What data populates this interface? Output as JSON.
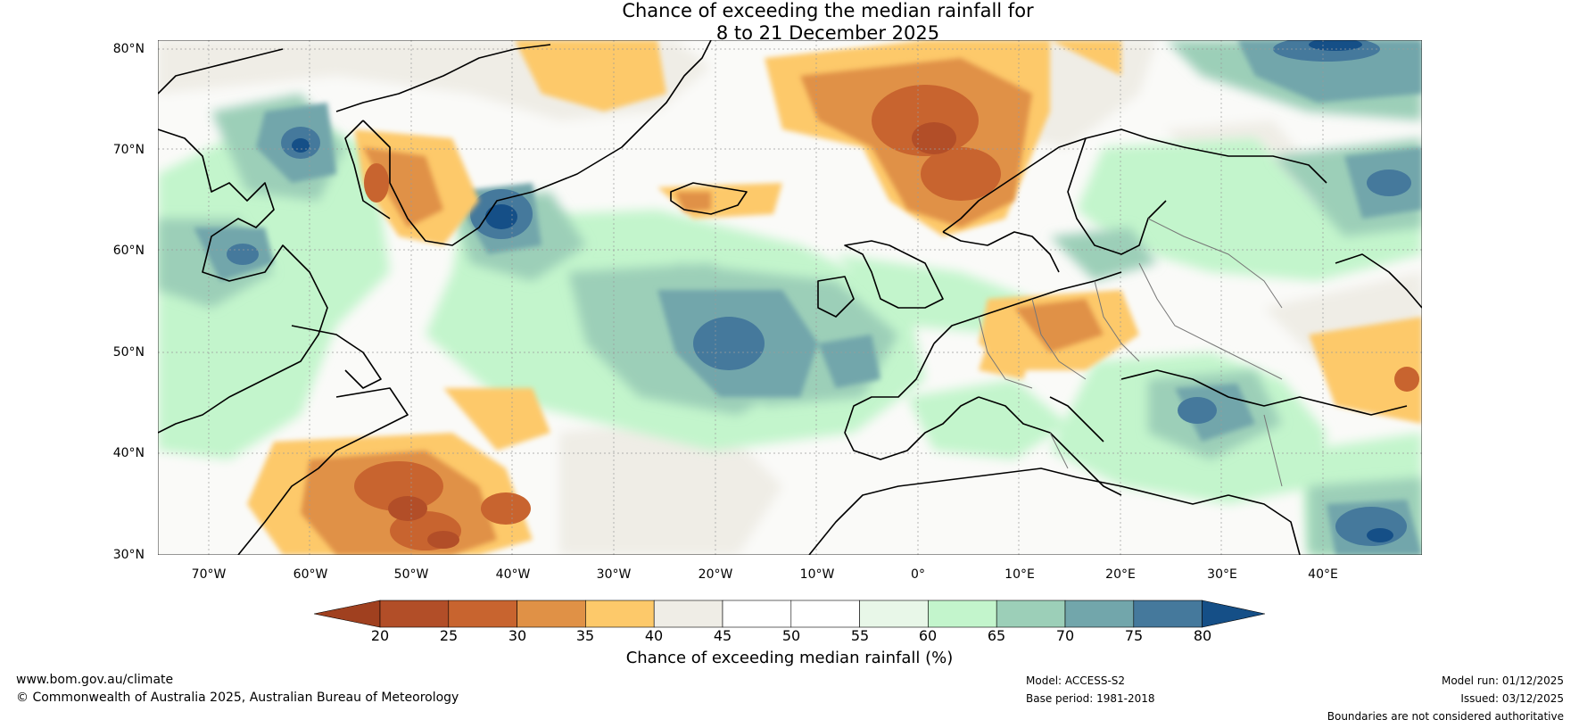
{
  "title": {
    "line1": "Chance of exceeding the median rainfall for",
    "line2": "8 to 21 December 2025"
  },
  "map": {
    "lat_labels": [
      "80°N",
      "70°N",
      "60°N",
      "50°N",
      "40°N",
      "30°N"
    ],
    "lon_labels": [
      "70°W",
      "60°W",
      "50°W",
      "40°W",
      "30°W",
      "20°W",
      "10°W",
      "0°",
      "10°E",
      "20°E",
      "30°E",
      "40°E"
    ],
    "extent": {
      "lon_min": -75,
      "lon_max": 50,
      "lat_min": 30,
      "lat_max": 81
    }
  },
  "colorbar": {
    "ticks": [
      "20",
      "25",
      "30",
      "35",
      "40",
      "45",
      "50",
      "55",
      "60",
      "65",
      "70",
      "75",
      "80"
    ],
    "colors": {
      "below20": "#a0401f",
      "20_25": "#b24e28",
      "25_30": "#c8642f",
      "30_35": "#e09146",
      "35_40": "#fdc96a",
      "40_45": "#efede6",
      "45_50": "#ffffff",
      "50_55": "#ffffff",
      "55_60": "#e8f7e8",
      "60_65": "#c3f5cc",
      "65_70": "#9ccfb8",
      "70_75": "#72a6ab",
      "75_80": "#45799c",
      "above80": "#154f87"
    },
    "label": "Chance of exceeding median rainfall (%)"
  },
  "footer": {
    "website": "www.bom.gov.au/climate",
    "copyright": "© Commonwealth of Australia 2025, Australian Bureau of Meteorology",
    "model": "Model: ACCESS-S2",
    "base_period": "Base period: 1981-2018",
    "model_run": "Model run: 01/12/2025",
    "issued": "Issued: 03/12/2025",
    "disclaimer": "Boundaries are not considered authoritative"
  }
}
